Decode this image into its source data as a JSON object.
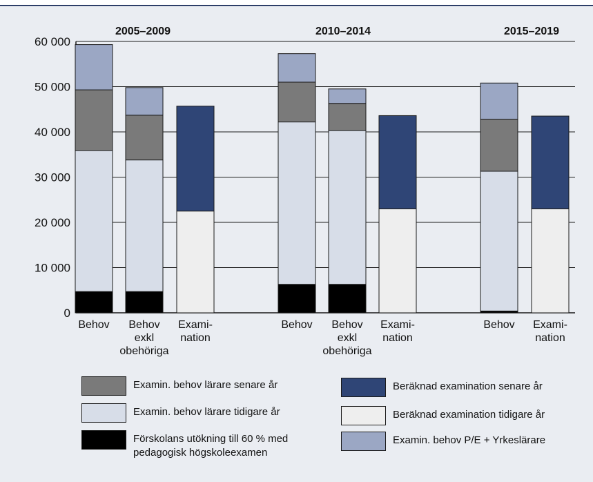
{
  "colors": {
    "background": "#eaedf2",
    "rule": "#2d3e68",
    "grid": "#1a1a1a"
  },
  "chart_data": {
    "type": "bar",
    "stacked": true,
    "title": "",
    "xlabel": "",
    "ylabel": "",
    "ylim": [
      0,
      60000
    ],
    "yticks": [
      "0",
      "10 000",
      "20 000",
      "30 000",
      "40 000",
      "50 000",
      "60 000"
    ],
    "grid": true,
    "legend_position": "bottom",
    "groups": [
      {
        "label": "2005–2009",
        "bars": [
          {
            "label": "Behov",
            "segments": [
              4700,
              31200,
              13400,
              10000
            ]
          },
          {
            "label": "Behov exkl obehöriga",
            "segments": [
              4700,
              29100,
              9900,
              6100
            ]
          },
          {
            "label": "Exami-nation",
            "segments": [
              22500,
              23200
            ]
          }
        ]
      },
      {
        "label": "2010–2014",
        "bars": [
          {
            "label": "Behov",
            "segments": [
              6300,
              35900,
              8800,
              6300
            ]
          },
          {
            "label": "Behov exkl obehöriga",
            "segments": [
              6300,
              34000,
              6000,
              3200
            ]
          },
          {
            "label": "Exami-nation",
            "segments": [
              23000,
              20600
            ]
          }
        ]
      },
      {
        "label": "2015–2019",
        "bars": [
          {
            "label": "Behov",
            "segments": [
              400,
              30900,
              11500,
              8000
            ]
          },
          {
            "label": "Exami-nation",
            "segments": [
              23000,
              20500
            ]
          }
        ]
      }
    ],
    "behov_series": [
      {
        "name": "Förskolans utökning till 60 % med pedagogisk högskoleexamen",
        "color": "#000000"
      },
      {
        "name": "Examin. behov lärare tidigare år",
        "color": "#d7dde8"
      },
      {
        "name": "Examin. behov lärare senare år",
        "color": "#7a7a7a"
      },
      {
        "name": "Examin. behov P/E + Yrkeslärare",
        "color": "#9ba7c4"
      }
    ],
    "exam_series": [
      {
        "name": "Beräknad examination tidigare år",
        "color": "#eeeeee"
      },
      {
        "name": "Beräknad examination senare år",
        "color": "#2f4576"
      }
    ]
  },
  "legend": {
    "left": [
      {
        "label": "Examin. behov lärare senare år",
        "color": "#7a7a7a"
      },
      {
        "label": "Examin. behov lärare tidigare år",
        "color": "#d7dde8"
      },
      {
        "label": "Förskolans utökning till 60 % med pedagogisk högskoleexamen",
        "color": "#000000"
      }
    ],
    "right": [
      {
        "label": "Beräknad examination senare år",
        "color": "#2f4576"
      },
      {
        "label": "Beräknad examination tidigare år",
        "color": "#eeeeee"
      },
      {
        "label": "Examin. behov P/E + Yrkeslärare",
        "color": "#9ba7c4"
      }
    ]
  }
}
